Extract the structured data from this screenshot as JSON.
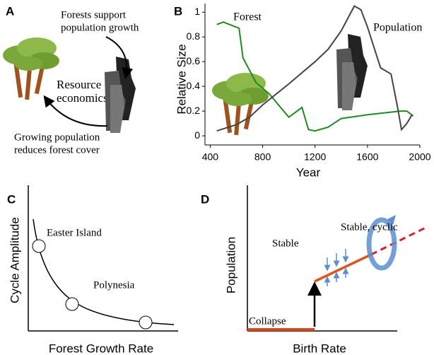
{
  "panel_a": {
    "label": "A",
    "top_text": [
      "Forests support",
      "population growth"
    ],
    "center_text": [
      "Resource",
      "economics"
    ],
    "bottom_text": [
      "Growing population",
      "reduces forest cover"
    ]
  },
  "chart_data": {
    "type": "line",
    "panel_label": "B",
    "x_label": "Year",
    "y_label": "Relative Size",
    "xlim": [
      360,
      2000
    ],
    "xticks": [
      400,
      800,
      1200,
      1600,
      2000
    ],
    "ylim": [
      -0.074,
      1.07
    ],
    "yticks": [
      0,
      0.2,
      0.4,
      0.6,
      0.8,
      1
    ],
    "series": [
      {
        "name": "Forest",
        "color": "#1f8a1f",
        "x": [
          450,
          500,
          620,
          650,
          750,
          850,
          1000,
          1100,
          1150,
          1200,
          1300,
          1400,
          1600,
          1850,
          1900,
          1950
        ],
        "values": [
          0.9,
          0.92,
          0.87,
          0.63,
          0.43,
          0.34,
          0.15,
          0.23,
          0.05,
          0.04,
          0.07,
          0.14,
          0.17,
          0.2,
          0.2,
          0.16
        ]
      },
      {
        "name": "Population",
        "color": "#444444",
        "x": [
          450,
          600,
          700,
          800,
          1000,
          1200,
          1300,
          1400,
          1460,
          1500,
          1550,
          1600,
          1700,
          1780,
          1830,
          1860,
          1900,
          1940
        ],
        "values": [
          0.04,
          0.09,
          0.15,
          0.25,
          0.42,
          0.6,
          0.7,
          0.85,
          0.97,
          1.05,
          1.02,
          0.88,
          0.55,
          0.5,
          0.23,
          0.05,
          0.1,
          0.17
        ]
      }
    ]
  },
  "panel_c": {
    "label": "C",
    "y_label": "Cycle Amplitude",
    "x_label": "Forest Growth Rate",
    "points": [
      "Easter Island",
      "Polynesia"
    ]
  },
  "panel_d": {
    "label": "D",
    "y_label": "Population",
    "x_label": "Birth Rate",
    "regions": [
      "Stable",
      "Stable, cyclic",
      "Collapse"
    ]
  }
}
